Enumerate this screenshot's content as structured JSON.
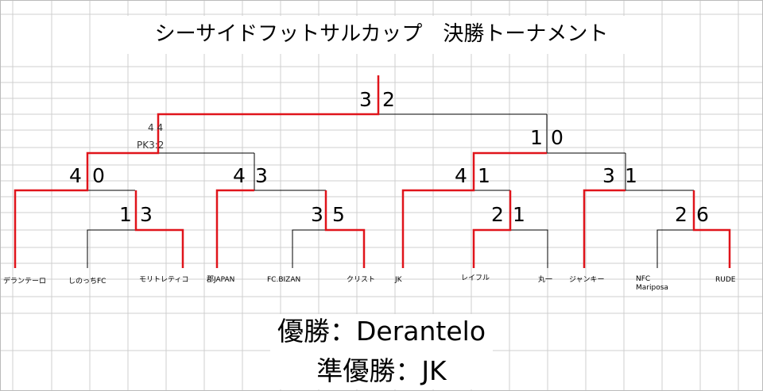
{
  "title": "シーサイドフットサルカップ　決勝トーナメント",
  "teams": [
    "デランテーロ",
    "しのっちFC",
    "モリトレティコ",
    "郡JAPAN",
    "FC.BIZAN",
    "クリスト",
    "JK",
    "レイフル",
    "丸一",
    "ジャンキー",
    "NFC\nMariposa",
    "RUDE"
  ],
  "scores": {
    "r1_1_left": "1",
    "r1_1_right": "3",
    "r1_2_left": "3",
    "r1_2_right": "5",
    "r1_3_left": "2",
    "r1_3_right": "1",
    "r1_4_left": "2",
    "r1_4_right": "6",
    "qf_1_left": "4",
    "qf_1_right": "0",
    "qf_2_left": "4",
    "qf_2_right": "3",
    "qf_3_left": "4",
    "qf_3_right": "1",
    "qf_4_left": "3",
    "qf_4_right": "1",
    "sf_1_text": "4 4",
    "sf_1_pk": "PK3:2",
    "sf_2_left": "1",
    "sf_2_right": "0",
    "final_left": "3",
    "final_right": "2"
  },
  "results": {
    "champion": "優勝：Derantelo",
    "runner_up": "準優勝：JK"
  },
  "colors": {
    "winner_line": "#e0141b",
    "bracket_line": "#000000",
    "grid_line": "#cfcfcf"
  }
}
